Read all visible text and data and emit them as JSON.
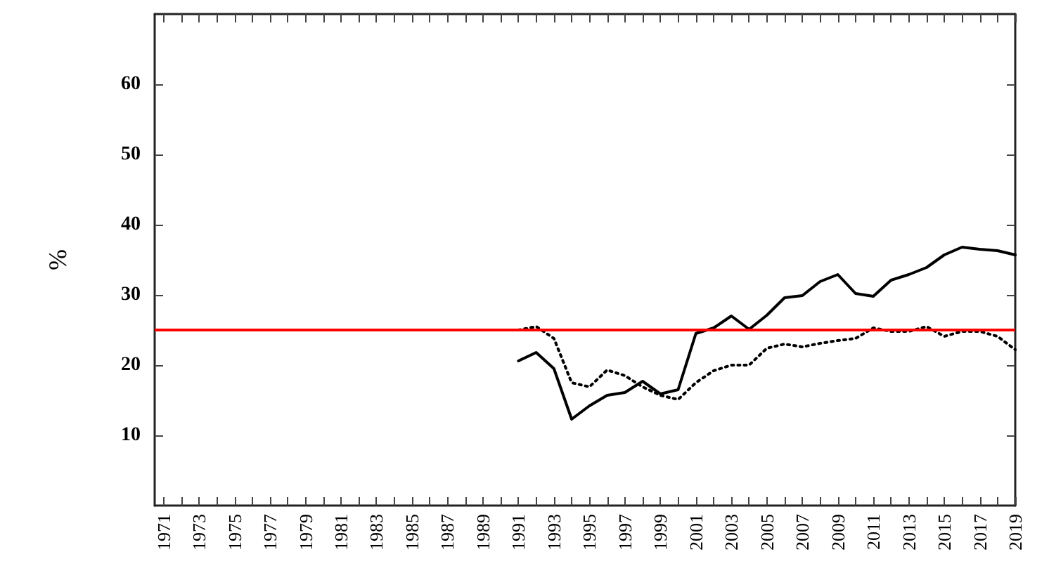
{
  "chart_data": {
    "type": "line",
    "ylabel": "%",
    "x": [
      1991,
      1992,
      1993,
      1994,
      1995,
      1996,
      1997,
      1998,
      1999,
      2000,
      2001,
      2002,
      2003,
      2004,
      2005,
      2006,
      2007,
      2008,
      2009,
      2010,
      2011,
      2012,
      2013,
      2014,
      2015,
      2016,
      2017,
      2018,
      2019
    ],
    "series": [
      {
        "color": "#000000",
        "line_style": "solid",
        "values": [
          20.6,
          21.8,
          19.5,
          12.3,
          14.2,
          15.7,
          16.1,
          17.7,
          15.9,
          16.5,
          24.5,
          25.3,
          27.0,
          25.1,
          27.1,
          29.6,
          29.9,
          31.9,
          32.9,
          30.2,
          29.8,
          32.1,
          32.9,
          33.9,
          35.7,
          36.8,
          36.5,
          36.3,
          35.7
        ]
      },
      {
        "color": "#000000",
        "line_style": "dotted",
        "values": [
          25.0,
          25.5,
          23.8,
          17.5,
          16.9,
          19.3,
          18.5,
          16.9,
          15.7,
          15.1,
          17.5,
          19.2,
          20.0,
          20.0,
          22.4,
          23.0,
          22.6,
          23.1,
          23.5,
          23.8,
          25.3,
          24.8,
          24.8,
          25.5,
          24.1,
          24.8,
          24.8,
          24.1,
          22.2
        ]
      }
    ],
    "xlim": [
      1970.5,
      2019
    ],
    "xticks": [
      1971,
      {
        "value": 1972,
        "label": null
      },
      1973,
      {
        "value": 1974,
        "label": null
      },
      1975,
      {
        "value": 1976,
        "label": null
      },
      1977,
      {
        "value": 1978,
        "label": null
      },
      1979,
      {
        "value": 1980,
        "label": null
      },
      1981,
      {
        "value": 1982,
        "label": null
      },
      1983,
      {
        "value": 1984,
        "label": null
      },
      1985,
      {
        "value": 1986,
        "label": null
      },
      1987,
      {
        "value": 1988,
        "label": null
      },
      1989,
      {
        "value": 1990,
        "label": null
      },
      1991,
      {
        "value": 1992,
        "label": null
      },
      1993,
      {
        "value": 1994,
        "label": null
      },
      1995,
      {
        "value": 1996,
        "label": null
      },
      1997,
      {
        "value": 1998,
        "label": null
      },
      1999,
      {
        "value": 2000,
        "label": null
      },
      2001,
      {
        "value": 2002,
        "label": null
      },
      2003,
      {
        "value": 2004,
        "label": null
      },
      2005,
      {
        "value": 2006,
        "label": null
      },
      2007,
      {
        "value": 2008,
        "label": null
      },
      2009,
      {
        "value": 2010,
        "label": null
      },
      2011,
      {
        "value": 2012,
        "label": null
      },
      2013,
      {
        "value": 2014,
        "label": null
      },
      2015,
      {
        "value": 2016,
        "label": null
      },
      2017,
      {
        "value": 2018,
        "label": null
      },
      2019
    ],
    "ylim": [
      0,
      70
    ],
    "yticks": [
      10,
      20,
      30,
      40,
      50,
      60
    ],
    "ref_lines": [
      {
        "axis": "y",
        "value": 25,
        "color": "#ff0000"
      }
    ],
    "grid": false,
    "marker": "none"
  }
}
